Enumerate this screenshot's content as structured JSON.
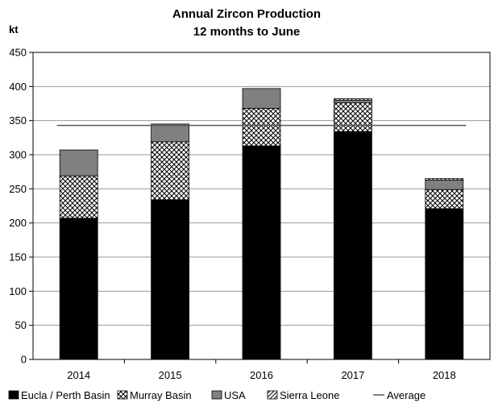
{
  "chart_data": {
    "type": "bar",
    "stacked": true,
    "title": "Annual Zircon Production",
    "subtitle": "12 months to June",
    "ylabel": "kt",
    "xlabel": "",
    "ylim": [
      0,
      450
    ],
    "yticks": [
      0,
      50,
      100,
      150,
      200,
      250,
      300,
      350,
      400,
      450
    ],
    "grid": true,
    "legend_position": "bottom",
    "categories": [
      "2014",
      "2015",
      "2016",
      "2017",
      "2018"
    ],
    "series": [
      {
        "name": "Eucla / Perth Basin",
        "pattern": "solid",
        "color": "#000000",
        "values": [
          207,
          234,
          313,
          334,
          221
        ]
      },
      {
        "name": "Murray Basin",
        "pattern": "crosshatch",
        "color": "#ffffff",
        "values": [
          62,
          85,
          55,
          42,
          28
        ]
      },
      {
        "name": "USA",
        "pattern": "solid",
        "color": "#808080",
        "values": [
          38,
          26,
          29,
          4,
          14
        ]
      },
      {
        "name": "Sierra Leone",
        "pattern": "diagonal",
        "color": "#ffffff",
        "values": [
          0,
          0,
          0,
          2,
          2
        ]
      }
    ],
    "average": {
      "name": "Average",
      "value": 343,
      "color": "#595959"
    }
  }
}
